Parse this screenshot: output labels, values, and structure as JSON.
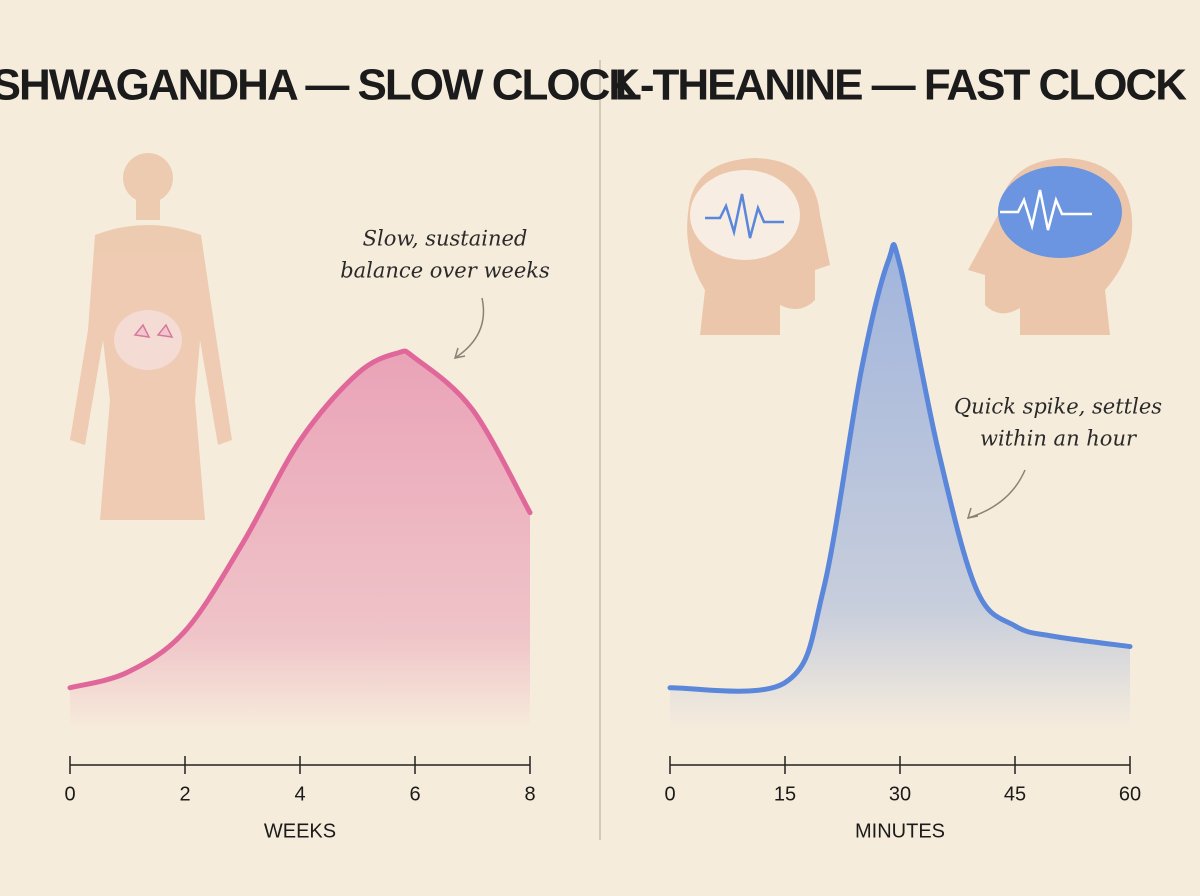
{
  "chart_data": [
    {
      "type": "area",
      "title": "ASHWAGANDHA — SLOW CLOCK",
      "x": [
        0,
        1,
        2,
        3,
        4,
        5,
        5.7,
        6,
        7,
        8
      ],
      "values": [
        15,
        18,
        26,
        43,
        63,
        76,
        80,
        79,
        69,
        49
      ],
      "xlim": [
        0,
        8
      ],
      "xticks": [
        0,
        2,
        4,
        6,
        8
      ],
      "ylim": [
        0,
        100
      ],
      "xlabel": "WEEKS",
      "annotation": [
        "Slow, sustained",
        "balance over weeks"
      ],
      "color": "#e0679a"
    },
    {
      "type": "area",
      "title": "L-THEANINE — FAST CLOCK",
      "x": [
        0,
        15,
        20,
        25,
        28.5,
        30,
        35,
        40,
        45,
        50,
        60
      ],
      "values": [
        15,
        16,
        34,
        77,
        98,
        97,
        61,
        34,
        27,
        25,
        23
      ],
      "xlim": [
        0,
        60
      ],
      "xticks": [
        0,
        15,
        30,
        45,
        60
      ],
      "ylim": [
        0,
        100
      ],
      "xlabel": "MINUTES",
      "annotation": [
        "Quick spike, settles",
        "within an hour"
      ],
      "color": "#5b87db"
    }
  ]
}
